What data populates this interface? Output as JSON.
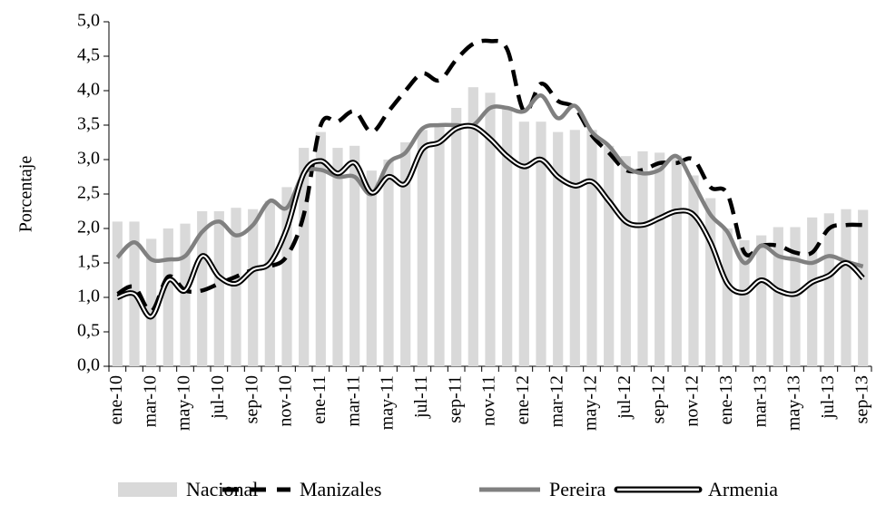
{
  "chart_data": {
    "type": "bar",
    "y_label": "Porcentaje",
    "categories": [
      "ene-10",
      null,
      "mar-10",
      null,
      "may-10",
      null,
      "jul-10",
      null,
      "sep-10",
      null,
      "nov-10",
      null,
      "ene-11",
      null,
      "mar-11",
      null,
      "may-11",
      null,
      "jul-11",
      null,
      "sep-11",
      null,
      "nov-11",
      null,
      "ene-12",
      null,
      "mar-12",
      null,
      "may-12",
      null,
      "jul-12",
      null,
      "sep-12",
      null,
      "nov-12",
      null,
      "ene-13",
      null,
      "mar-13",
      null,
      "may-13",
      null,
      "jul-13",
      null,
      "sep-13"
    ],
    "series": [
      {
        "name": "Nacional",
        "type": "bar",
        "color": "#d9d9d9",
        "values": [
          2.1,
          2.1,
          1.85,
          2.0,
          2.07,
          2.25,
          2.25,
          2.3,
          2.28,
          2.4,
          2.6,
          3.17,
          3.4,
          3.17,
          3.2,
          2.84,
          3.0,
          3.25,
          3.43,
          3.5,
          3.75,
          4.05,
          3.97,
          3.75,
          3.55,
          3.55,
          3.4,
          3.43,
          3.43,
          3.2,
          3.05,
          3.12,
          3.1,
          3.06,
          2.77,
          2.44,
          2.0,
          1.83,
          1.9,
          2.02,
          2.02,
          2.16,
          2.22,
          2.28,
          2.27
        ]
      },
      {
        "name": "Manizales",
        "type": "line",
        "line_style": "dashed",
        "color": "#000000",
        "values": [
          1.05,
          1.15,
          0.8,
          1.3,
          1.1,
          1.1,
          1.2,
          1.3,
          1.4,
          1.45,
          1.6,
          2.2,
          3.5,
          3.55,
          3.7,
          3.4,
          3.7,
          4.0,
          4.25,
          4.15,
          4.45,
          4.68,
          4.72,
          4.6,
          3.7,
          4.1,
          3.85,
          3.75,
          3.35,
          3.1,
          2.85,
          2.85,
          2.95,
          2.95,
          3.0,
          2.6,
          2.5,
          1.65,
          1.75,
          1.75,
          1.65,
          1.65,
          2.0,
          2.05,
          2.05
        ]
      },
      {
        "name": "Pereira",
        "type": "line",
        "line_style": "solid",
        "color": "#808080",
        "values": [
          1.58,
          1.8,
          1.55,
          1.55,
          1.6,
          1.95,
          2.1,
          1.9,
          2.05,
          2.4,
          2.3,
          2.8,
          2.85,
          2.75,
          2.75,
          2.5,
          2.95,
          3.1,
          3.45,
          3.5,
          3.5,
          3.5,
          3.75,
          3.75,
          3.7,
          3.93,
          3.6,
          3.78,
          3.4,
          3.2,
          2.9,
          2.8,
          2.85,
          3.05,
          2.65,
          2.2,
          1.95,
          1.5,
          1.75,
          1.6,
          1.55,
          1.5,
          1.6,
          1.52,
          1.45
        ]
      },
      {
        "name": "Armenia",
        "type": "line",
        "line_style": "double",
        "color": "#000000",
        "values": [
          1.0,
          1.05,
          0.72,
          1.25,
          1.1,
          1.6,
          1.3,
          1.2,
          1.4,
          1.5,
          2.0,
          2.8,
          2.98,
          2.8,
          2.95,
          2.52,
          2.75,
          2.65,
          3.15,
          3.25,
          3.45,
          3.48,
          3.3,
          3.05,
          2.9,
          3.0,
          2.75,
          2.62,
          2.68,
          2.4,
          2.1,
          2.05,
          2.15,
          2.25,
          2.2,
          1.8,
          1.2,
          1.07,
          1.25,
          1.1,
          1.05,
          1.22,
          1.32,
          1.5,
          1.28
        ]
      }
    ],
    "ylim": [
      0,
      5
    ],
    "yticks": [
      {
        "value": 0,
        "label": "0,0"
      },
      {
        "value": 0.5,
        "label": "0,5"
      },
      {
        "value": 1,
        "label": "1,0"
      },
      {
        "value": 1.5,
        "label": "1,5"
      },
      {
        "value": 2,
        "label": "2,0"
      },
      {
        "value": 2.5,
        "label": "2,5"
      },
      {
        "value": 3,
        "label": "3,0"
      },
      {
        "value": 3.5,
        "label": "3,5"
      },
      {
        "value": 4,
        "label": "4,0"
      },
      {
        "value": 4.5,
        "label": "4,5"
      },
      {
        "value": 5,
        "label": "5,0"
      }
    ],
    "grid": false,
    "legend": "bottom"
  }
}
